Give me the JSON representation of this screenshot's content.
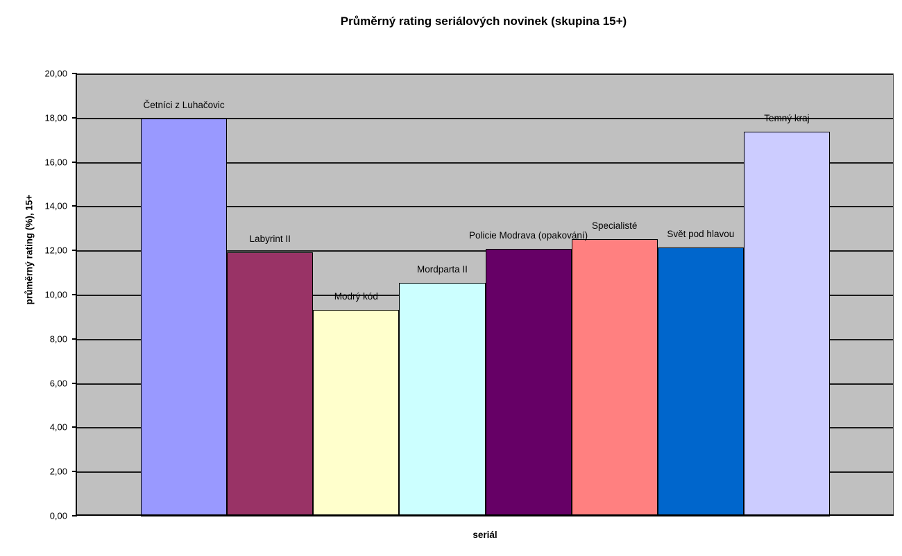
{
  "chart_data": {
    "type": "bar",
    "title": "Průměrný rating seriálových novinek (skupina 15+)",
    "xlabel": "seriál",
    "ylabel": "průměrný rating (%), 15+",
    "categories": [
      "Četníci z Luhačovic",
      "Labyrint II",
      "Modrý kód",
      "Mordparta II",
      "Policie Modrava (opakování)",
      "Specialisté",
      "Svět pod hlavou",
      "Temný kraj"
    ],
    "values": [
      18.0,
      11.95,
      9.35,
      10.55,
      12.1,
      12.55,
      12.15,
      17.4
    ],
    "bar_colors": [
      "#9999ff",
      "#993366",
      "#ffffcc",
      "#ccffff",
      "#660066",
      "#ff8080",
      "#0066cc",
      "#ccccff"
    ],
    "bar_border_color": "#000000",
    "ylim": [
      0,
      20
    ],
    "ytick_step": 2,
    "ytick_labels": [
      "0,00",
      "2,00",
      "4,00",
      "6,00",
      "8,00",
      "10,00",
      "12,00",
      "14,00",
      "16,00",
      "18,00",
      "20,00"
    ],
    "grid": true,
    "gridline_color": "#1a1a1a",
    "legend": false,
    "plot_bg_color": "#c0c0c0",
    "outer_bg_color": "#ffffff",
    "text_color": "#000000"
  }
}
